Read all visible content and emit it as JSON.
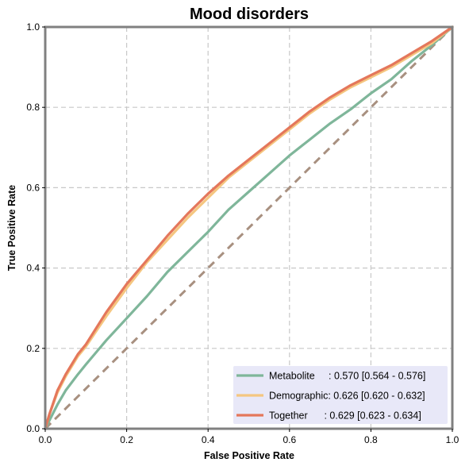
{
  "chart_data": {
    "type": "line",
    "title": "Mood disorders",
    "xlabel": "False Positive Rate",
    "ylabel": "True Positive Rate",
    "xlim": [
      0,
      1
    ],
    "ylim": [
      0,
      1
    ],
    "xticks": [
      "0.0",
      "0.2",
      "0.4",
      "0.6",
      "0.8",
      "1.0"
    ],
    "yticks": [
      "0.0",
      "0.2",
      "0.4",
      "0.6",
      "0.8",
      "1.0"
    ],
    "grid": true,
    "legend_position": "lower-right",
    "series": [
      {
        "name": "Metabolite",
        "legend_label": "Metabolite     : 0.570 [0.564 - 0.576]",
        "color": "#7fb69a",
        "x": [
          0,
          0.01,
          0.03,
          0.05,
          0.08,
          0.1,
          0.15,
          0.2,
          0.25,
          0.3,
          0.35,
          0.4,
          0.45,
          0.5,
          0.55,
          0.6,
          0.65,
          0.7,
          0.75,
          0.8,
          0.85,
          0.9,
          0.95,
          1.0
        ],
        "y": [
          0,
          0.02,
          0.06,
          0.095,
          0.135,
          0.16,
          0.22,
          0.275,
          0.33,
          0.39,
          0.44,
          0.49,
          0.545,
          0.59,
          0.635,
          0.68,
          0.72,
          0.76,
          0.795,
          0.835,
          0.87,
          0.915,
          0.955,
          1.0
        ]
      },
      {
        "name": "Demographic",
        "legend_label": "Demographic: 0.626 [0.620 - 0.632]",
        "color": "#f5c680",
        "x": [
          0,
          0.01,
          0.03,
          0.05,
          0.08,
          0.1,
          0.15,
          0.2,
          0.25,
          0.3,
          0.35,
          0.4,
          0.45,
          0.5,
          0.55,
          0.6,
          0.65,
          0.7,
          0.75,
          0.8,
          0.85,
          0.9,
          0.95,
          1.0
        ],
        "y": [
          0,
          0.035,
          0.09,
          0.13,
          0.18,
          0.205,
          0.28,
          0.35,
          0.415,
          0.47,
          0.525,
          0.575,
          0.625,
          0.665,
          0.705,
          0.745,
          0.785,
          0.82,
          0.85,
          0.875,
          0.9,
          0.93,
          0.96,
          1.0
        ]
      },
      {
        "name": "Together",
        "legend_label": "Together      : 0.629 [0.623 - 0.634]",
        "color": "#e4775b",
        "x": [
          0,
          0.01,
          0.03,
          0.05,
          0.08,
          0.1,
          0.15,
          0.2,
          0.25,
          0.3,
          0.35,
          0.4,
          0.45,
          0.5,
          0.55,
          0.6,
          0.65,
          0.7,
          0.75,
          0.8,
          0.85,
          0.9,
          0.95,
          1.0
        ],
        "y": [
          0,
          0.035,
          0.095,
          0.135,
          0.185,
          0.21,
          0.29,
          0.36,
          0.42,
          0.48,
          0.535,
          0.585,
          0.63,
          0.67,
          0.71,
          0.75,
          0.79,
          0.825,
          0.855,
          0.88,
          0.905,
          0.935,
          0.965,
          1.0
        ]
      }
    ],
    "reference_line": {
      "x": [
        0,
        1
      ],
      "y": [
        0,
        1
      ],
      "color": "#a89080",
      "style": "dashed"
    }
  },
  "colors": {
    "axes_frame": "#808080",
    "grid": "#c8c8c8",
    "legend_bg": "#e8e8f8"
  }
}
